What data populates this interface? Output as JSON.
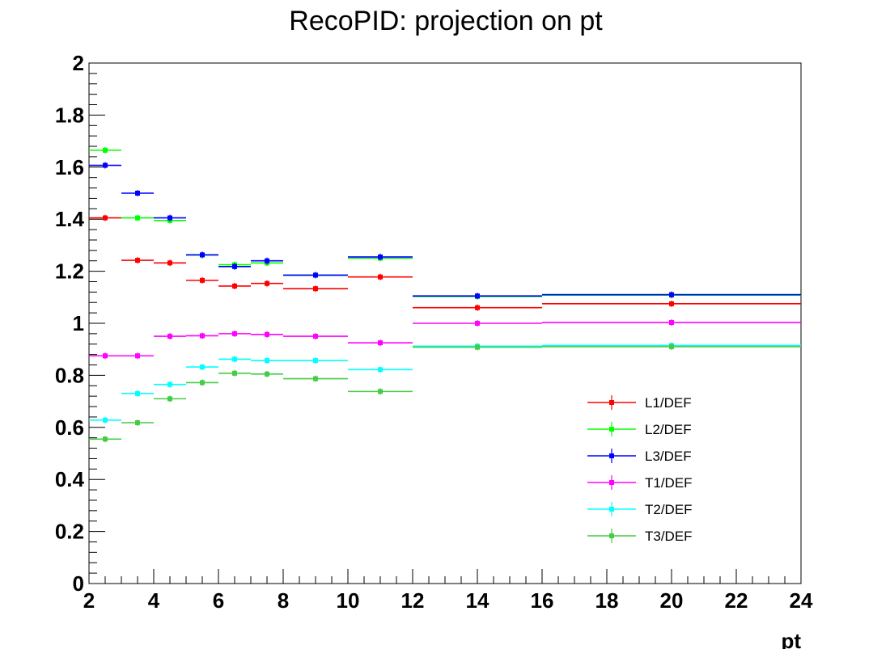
{
  "chart_data": {
    "type": "scatter",
    "title": "RecoPID: projection on pt",
    "xlabel": "pt",
    "ylabel": "",
    "xlim": [
      2,
      24
    ],
    "ylim": [
      0,
      2
    ],
    "x_ticks": [
      "2",
      "4",
      "6",
      "8",
      "10",
      "12",
      "14",
      "16",
      "18",
      "20",
      "22",
      "24"
    ],
    "y_ticks": [
      "0",
      "0.2",
      "0.4",
      "0.6",
      "0.8",
      "1",
      "1.2",
      "1.4",
      "1.6",
      "1.8",
      "2"
    ],
    "grid": false,
    "legend_position": "bottom-right",
    "bins": [
      [
        2,
        3
      ],
      [
        3,
        4
      ],
      [
        4,
        5
      ],
      [
        5,
        6
      ],
      [
        6,
        7
      ],
      [
        7,
        8
      ],
      [
        8,
        10
      ],
      [
        10,
        12
      ],
      [
        12,
        16
      ],
      [
        16,
        24
      ]
    ],
    "series": [
      {
        "name": "L1/DEF",
        "color": "#ff0000",
        "values": [
          1.405,
          1.242,
          1.232,
          1.165,
          1.143,
          1.153,
          1.133,
          1.178,
          1.06,
          1.075
        ]
      },
      {
        "name": "L2/DEF",
        "color": "#00ff00",
        "values": [
          1.665,
          1.405,
          1.395,
          1.262,
          1.225,
          1.232,
          1.185,
          1.25,
          1.103,
          1.108
        ]
      },
      {
        "name": "L3/DEF",
        "color": "#0000ff",
        "values": [
          1.607,
          1.5,
          1.405,
          1.263,
          1.218,
          1.24,
          1.185,
          1.255,
          1.105,
          1.11
        ]
      },
      {
        "name": "T1/DEF",
        "color": "#ff00ff",
        "values": [
          0.875,
          0.875,
          0.95,
          0.952,
          0.96,
          0.957,
          0.95,
          0.925,
          1.0,
          1.003
        ]
      },
      {
        "name": "T2/DEF",
        "color": "#00ffff",
        "values": [
          0.628,
          0.73,
          0.765,
          0.832,
          0.862,
          0.857,
          0.857,
          0.822,
          0.912,
          0.915
        ]
      },
      {
        "name": "T3/DEF",
        "color": "#44cc44",
        "values": [
          0.555,
          0.618,
          0.71,
          0.772,
          0.808,
          0.805,
          0.787,
          0.738,
          0.908,
          0.91
        ]
      }
    ]
  }
}
